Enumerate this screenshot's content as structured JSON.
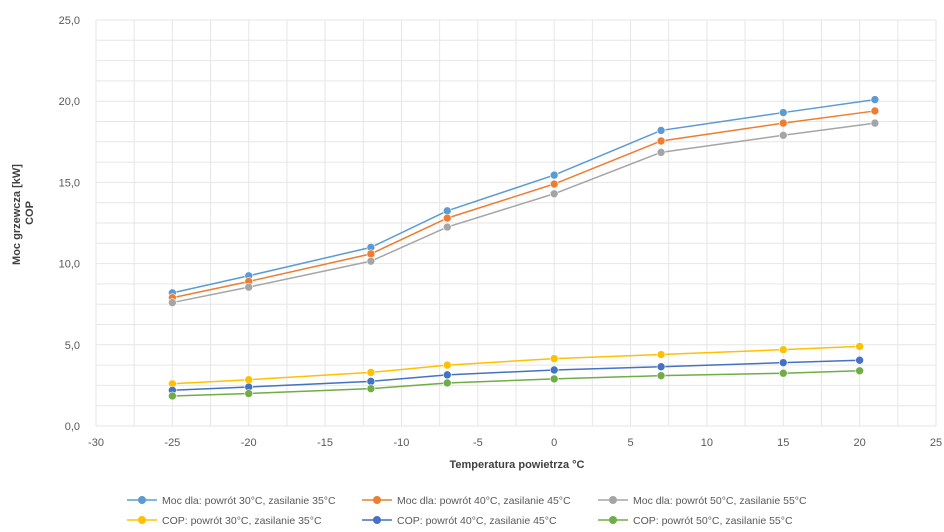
{
  "chart_data": {
    "type": "line",
    "xlabel": "Temperatura powietrza °C",
    "ylabel": [
      "Moc grzewcza [kW]",
      "COP"
    ],
    "xlim": [
      -30,
      25
    ],
    "ylim": [
      0,
      25
    ],
    "x_ticks": [
      -30,
      -25,
      -20,
      -15,
      -10,
      -5,
      0,
      5,
      10,
      15,
      20,
      25
    ],
    "y_ticks": [
      "0,0",
      "5,0",
      "10,0",
      "15,0",
      "20,0",
      "25,0"
    ],
    "grid": "vertical and horizontal",
    "legend_position": "bottom",
    "series": [
      {
        "name": "Moc dla: powrót 30°C, zasilanie 35°C",
        "color": "#5B9BD5",
        "x": [
          -25,
          -20,
          -12,
          -7,
          0,
          7,
          15,
          21
        ],
        "values": [
          8.2,
          9.25,
          11.0,
          13.25,
          15.45,
          18.2,
          19.3,
          20.1
        ]
      },
      {
        "name": "Moc dla: powrót 40°C, zasilanie 45°C",
        "color": "#ED7D31",
        "x": [
          -25,
          -20,
          -12,
          -7,
          0,
          7,
          15,
          21
        ],
        "values": [
          7.9,
          8.9,
          10.6,
          12.8,
          14.9,
          17.55,
          18.65,
          19.4
        ]
      },
      {
        "name": "Moc dla: powrót 50°C, zasilanie 55°C",
        "color": "#A5A5A5",
        "x": [
          -25,
          -20,
          -12,
          -7,
          0,
          7,
          15,
          21
        ],
        "values": [
          7.6,
          8.55,
          10.15,
          12.25,
          14.3,
          16.85,
          17.9,
          18.65
        ]
      },
      {
        "name": "COP: powrót 30°C, zasilanie 35°C",
        "color": "#FFC000",
        "x": [
          -25,
          -20,
          -12,
          -7,
          0,
          7,
          15,
          20
        ],
        "values": [
          2.6,
          2.85,
          3.3,
          3.75,
          4.15,
          4.4,
          4.7,
          4.9
        ]
      },
      {
        "name": "COP: powrót 40°C, zasilanie 45°C",
        "color": "#4472C4",
        "x": [
          -25,
          -20,
          -12,
          -7,
          0,
          7,
          15,
          20
        ],
        "values": [
          2.2,
          2.4,
          2.75,
          3.15,
          3.45,
          3.65,
          3.9,
          4.05
        ]
      },
      {
        "name": "COP: powrót 50°C, zasilanie 55°C",
        "color": "#70AD47",
        "x": [
          -25,
          -20,
          -12,
          -7,
          0,
          7,
          15,
          20
        ],
        "values": [
          1.85,
          2.0,
          2.3,
          2.65,
          2.9,
          3.1,
          3.25,
          3.4
        ]
      }
    ]
  }
}
